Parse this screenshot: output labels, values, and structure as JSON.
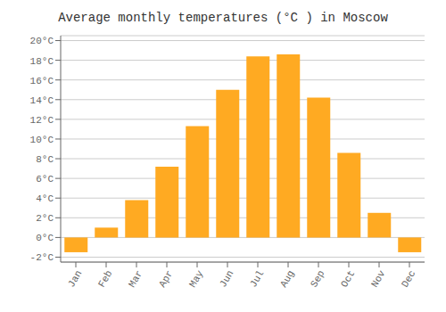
{
  "chart_data": {
    "type": "bar",
    "title": "Average monthly temperatures (°C ) in Moscow",
    "categories": [
      "Jan",
      "Feb",
      "Mar",
      "Apr",
      "May",
      "Jun",
      "Jul",
      "Aug",
      "Sep",
      "Oct",
      "Nov",
      "Dec"
    ],
    "values": [
      -1.5,
      1.0,
      3.8,
      7.2,
      11.3,
      15.0,
      18.4,
      18.6,
      14.2,
      8.6,
      2.5,
      -1.5
    ],
    "color": "#FFAA22",
    "ylim": [
      -2.5,
      20.5
    ],
    "yticks": [
      {
        "value": -2,
        "label": "-2°C"
      },
      {
        "value": 0,
        "label": "0°C"
      },
      {
        "value": 2,
        "label": "2°C"
      },
      {
        "value": 4,
        "label": "4°C"
      },
      {
        "value": 6,
        "label": "6°C"
      },
      {
        "value": 8,
        "label": "8°C"
      },
      {
        "value": 10,
        "label": "10°C"
      },
      {
        "value": 12,
        "label": "12°C"
      },
      {
        "value": 14,
        "label": "14°C"
      },
      {
        "value": 16,
        "label": "16°C"
      },
      {
        "value": 18,
        "label": "18°C"
      },
      {
        "value": 20,
        "label": "20°C"
      }
    ],
    "grid": true
  }
}
